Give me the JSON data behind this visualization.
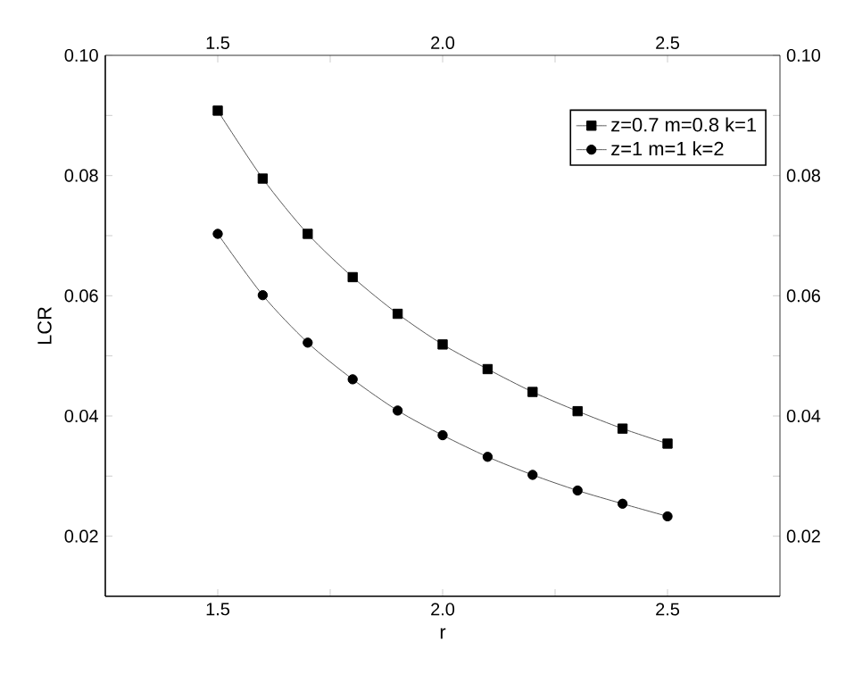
{
  "chart_data": {
    "type": "line",
    "xlabel": "r",
    "ylabel": "LCR",
    "xlim": [
      1.25,
      2.75
    ],
    "ylim": [
      0.01,
      0.1
    ],
    "xticks": [
      1.5,
      {
        "value": 1.75,
        "label": null
      },
      "2.0",
      {
        "value": 2.25,
        "label": null
      },
      2.5
    ],
    "yticks": [
      0.02,
      {
        "value": 0.03,
        "label": null
      },
      0.04,
      {
        "value": 0.05,
        "label": null
      },
      0.06,
      {
        "value": 0.07,
        "label": null
      },
      0.08,
      {
        "value": 0.09,
        "label": null
      },
      "0.10"
    ],
    "x2lim": [
      1.25,
      2.75
    ],
    "y2lim": [
      0.01,
      0.1
    ],
    "x2ticks": [
      1.5,
      {
        "value": 1.75,
        "label": null
      },
      "2.0",
      {
        "value": 2.25,
        "label": null
      },
      2.5
    ],
    "y2ticks": [
      0.02,
      {
        "value": 0.03,
        "label": null
      },
      0.04,
      {
        "value": 0.05,
        "label": null
      },
      0.06,
      {
        "value": 0.07,
        "label": null
      },
      0.08,
      {
        "value": 0.09,
        "label": null
      },
      "0.10"
    ],
    "grid": false,
    "legend": "top right",
    "line_style": "solid",
    "x": [
      1.5,
      1.6,
      1.7,
      1.8,
      1.9,
      2.0,
      2.1,
      2.2,
      2.3,
      2.4,
      2.5
    ],
    "series": [
      {
        "name": "z=0.7 m=0.8 k=1",
        "color": "#000000",
        "marker": "square",
        "values": [
          0.0908,
          0.0795,
          0.0703,
          0.0631,
          0.057,
          0.0519,
          0.0478,
          0.044,
          0.0408,
          0.0379,
          0.0354
        ]
      },
      {
        "name": "z=1 m=1 k=2",
        "color": "#000000",
        "marker": "circle",
        "values": [
          0.0703,
          0.0601,
          0.0522,
          0.0461,
          0.0409,
          0.0368,
          0.0332,
          0.0302,
          0.0276,
          0.0254,
          0.0233
        ]
      }
    ]
  }
}
